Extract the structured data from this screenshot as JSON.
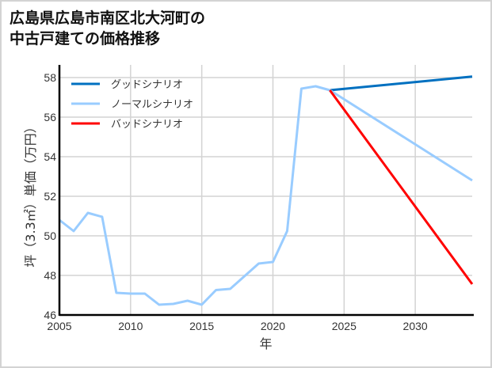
{
  "title": "広島県広島市南区北大河町の\n中古戸建ての価格推移",
  "chart_data": {
    "type": "line",
    "title": "広島県広島市南区北大河町の中古戸建ての価格推移",
    "xlabel": "年",
    "ylabel": "坪（3.3㎡）単価（万円）",
    "xlim": [
      2005,
      2034
    ],
    "ylim": [
      46,
      58.1
    ],
    "x_ticks": [
      2005,
      2010,
      2015,
      2020,
      2025,
      2030
    ],
    "y_ticks": [
      46,
      48,
      50,
      52,
      54,
      56,
      58
    ],
    "grid": true,
    "legend_position": "upper left",
    "series": [
      {
        "name": "グッドシナリオ",
        "color": "#0070c0",
        "x": [
          2024,
          2034
        ],
        "values": [
          57.36,
          58.05
        ]
      },
      {
        "name": "ノーマルシナリオ",
        "color": "#99ccff",
        "x": [
          2005,
          2006,
          2007,
          2008,
          2009,
          2010,
          2011,
          2012,
          2013,
          2014,
          2015,
          2016,
          2017,
          2018,
          2019,
          2020,
          2021,
          2022,
          2023,
          2024,
          2034
        ],
        "values": [
          50.8,
          50.24,
          51.16,
          50.96,
          47.12,
          47.08,
          47.08,
          46.52,
          46.56,
          46.72,
          46.52,
          47.26,
          47.32,
          47.96,
          48.6,
          48.68,
          50.24,
          57.44,
          57.56,
          57.36,
          52.8
        ]
      },
      {
        "name": "バッドシナリオ",
        "color": "#ff0000",
        "x": [
          2024,
          2034
        ],
        "values": [
          57.36,
          47.56
        ]
      }
    ]
  }
}
